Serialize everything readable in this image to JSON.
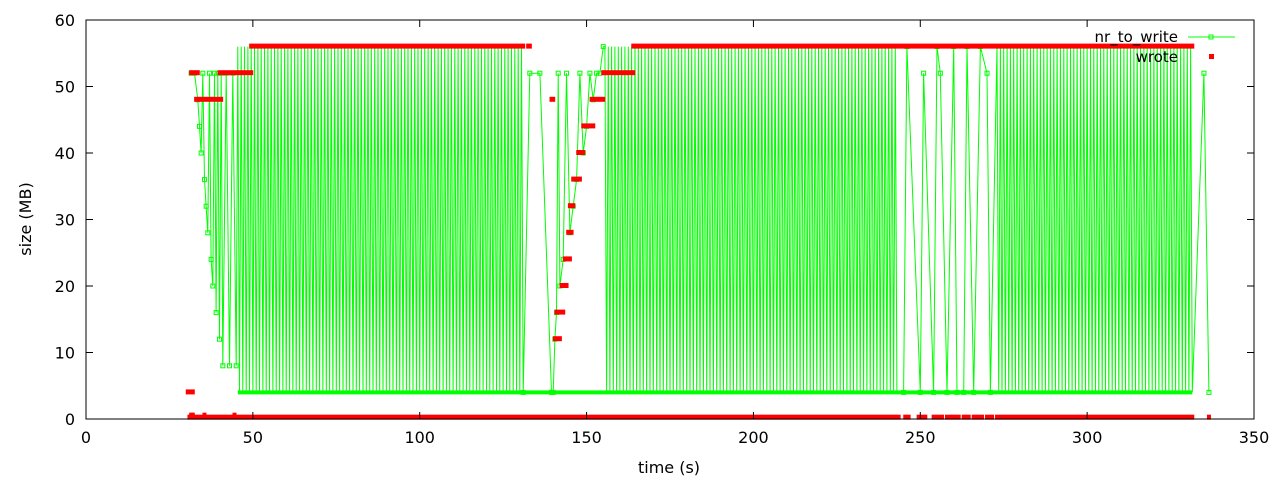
{
  "chart_data": {
    "type": "scatter",
    "title": "",
    "xlabel": "time (s)",
    "ylabel": "size (MB)",
    "xlim": [
      0,
      350
    ],
    "ylim": [
      0,
      60
    ],
    "x_ticks": [
      0,
      50,
      100,
      150,
      200,
      250,
      300,
      350
    ],
    "y_ticks": [
      0,
      10,
      20,
      30,
      40,
      50,
      60
    ],
    "grid": false,
    "legend_position": "top-right",
    "series": [
      {
        "name": "nr_to_write",
        "style": "linespoints",
        "color": "#00ff00",
        "segments": [
          {
            "description": "initial descent",
            "x": [
              31.5,
              32.5,
              33.5,
              34,
              34.5,
              35,
              35.5,
              36,
              36.5,
              37,
              37.5,
              38,
              38.5,
              39,
              39.5,
              40,
              40.5,
              41,
              42,
              43,
              44,
              45
            ],
            "y": [
              52,
              52,
              48,
              44,
              40,
              52,
              36,
              32,
              28,
              52,
              24,
              20,
              52,
              16,
              52,
              12,
              52,
              8,
              52,
              8,
              52,
              8
            ]
          },
          {
            "description": "oscillation 4-56",
            "x_start": 45.5,
            "x_end": 130.5,
            "low": 4,
            "high": 56,
            "step": 0.5,
            "marker_values_at_sparse_points": 52
          },
          {
            "description": "gap markers",
            "x": [
              131,
              133,
              136,
              139.5
            ],
            "y": [
              4,
              52,
              52,
              4
            ]
          },
          {
            "description": "ramp up",
            "x": [
              140,
              140.5,
              141,
              141.5,
              142,
              143,
              144,
              145,
              146,
              147,
              148,
              149,
              150,
              151,
              152,
              153,
              154,
              155
            ],
            "y": [
              4,
              12,
              16,
              52,
              20,
              24,
              52,
              28,
              32,
              36,
              52,
              40,
              44,
              52,
              48,
              52,
              52,
              56
            ]
          },
          {
            "description": "oscillation 4-56",
            "x_start": 155.5,
            "x_end": 243,
            "low": 4,
            "high": 56,
            "step": 0.5,
            "marker_values_at_sparse_points": 52
          },
          {
            "description": "sparse section",
            "x": [
              245,
              246,
              250,
              251,
              254,
              255,
              256,
              258,
              260,
              261,
              263,
              264,
              266,
              268,
              270,
              271
            ],
            "y": [
              4,
              56,
              4,
              52,
              4,
              56,
              52,
              4,
              56,
              4,
              4,
              56,
              4,
              56,
              52,
              4
            ]
          },
          {
            "description": "oscillation 4-56",
            "x_start": 273,
            "x_end": 331.5,
            "low": 4,
            "high": 56,
            "step": 0.5,
            "marker_values_at_sparse_points": 52
          },
          {
            "description": "tail",
            "x": [
              335,
              336.5
            ],
            "y": [
              52,
              4
            ]
          }
        ]
      },
      {
        "name": "wrote",
        "style": "points",
        "color": "#ff0000",
        "plateaus": [
          {
            "x_start": 30.5,
            "x_end": 32,
            "y": 4
          },
          {
            "x_start": 31.5,
            "x_end": 33.5,
            "y": 52
          },
          {
            "x_start": 33,
            "x_end": 40.5,
            "y": 48
          },
          {
            "x_start": 40,
            "x_end": 49.5,
            "y": 52
          },
          {
            "x_start": 49.5,
            "x_end": 131,
            "y": 56
          },
          {
            "x_start": 132.5,
            "x_end": 133,
            "y": 56
          },
          {
            "x_start": 139.5,
            "x_end": 140,
            "y": 48
          },
          {
            "x_start": 140.5,
            "x_end": 142,
            "y": 12
          },
          {
            "x_start": 141,
            "x_end": 143,
            "y": 16
          },
          {
            "x_start": 142.5,
            "x_end": 144,
            "y": 20
          },
          {
            "x_start": 143.5,
            "x_end": 145,
            "y": 24
          },
          {
            "x_start": 144.5,
            "x_end": 145.5,
            "y": 28
          },
          {
            "x_start": 145,
            "x_end": 146,
            "y": 32
          },
          {
            "x_start": 146,
            "x_end": 148,
            "y": 36
          },
          {
            "x_start": 147.5,
            "x_end": 149,
            "y": 40
          },
          {
            "x_start": 149,
            "x_end": 152,
            "y": 44
          },
          {
            "x_start": 151.5,
            "x_end": 155,
            "y": 48
          },
          {
            "x_start": 155,
            "x_end": 164,
            "y": 52
          },
          {
            "x_start": 164,
            "x_end": 331.5,
            "y": 56
          }
        ],
        "near_zero_band": {
          "x_start": 31,
          "x_end": 331.5,
          "y": 0.2,
          "gaps": [
            [
              243.5,
              245.5
            ],
            [
              246.5,
              249.5
            ],
            [
              251.5,
              254
            ],
            [
              256.5,
              258
            ],
            [
              259,
              260
            ],
            [
              261.5,
              263
            ],
            [
              264.5,
              266
            ],
            [
              268.5,
              270
            ],
            [
              271.5,
              273
            ]
          ]
        },
        "isolated_points": [
          {
            "x": 336.5,
            "y": 0.2
          }
        ]
      }
    ]
  }
}
